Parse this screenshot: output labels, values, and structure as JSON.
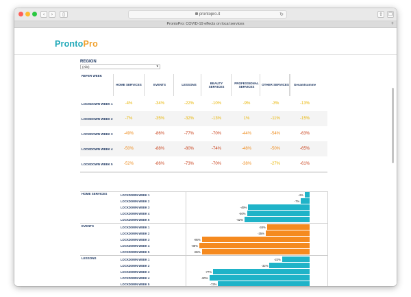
{
  "browser": {
    "url": "prontopro.it",
    "tab_title": "ProntoPro: COVID-19 effects on local services",
    "back_icon": "chevron-left-icon",
    "forward_icon": "chevron-right-icon"
  },
  "header": {
    "logo_part1": "Pronto",
    "logo_part2": "Pro",
    "logo_colors": [
      "#1fa8b8",
      "#f0a12e"
    ]
  },
  "filter": {
    "label": "REGION",
    "value": "(Alle)"
  },
  "table": {
    "corner_label": "REFER WEEK",
    "columns": [
      "HOME SERVICES",
      "EVENTS",
      "LESSONS",
      "BEAUTY SERVICES",
      "PROFESSIONAL SERVICES",
      "OTHER SERVICES",
      "Gesamtsumme"
    ],
    "rows": [
      {
        "label": "LOCKDOWN WEEK 1",
        "values": [
          "-4%",
          "-34%",
          "-22%",
          "-10%",
          "-9%",
          "-3%",
          "-13%"
        ]
      },
      {
        "label": "LOCKDOWN WEEK 2",
        "values": [
          "-7%",
          "-35%",
          "-32%",
          "-13%",
          "1%",
          "-11%",
          "-15%"
        ]
      },
      {
        "label": "LOCKDOWN WEEK 3",
        "values": [
          "-49%",
          "-86%",
          "-77%",
          "-70%",
          "-44%",
          "-54%",
          "-63%"
        ]
      },
      {
        "label": "LOCKDOWN WEEK 4",
        "values": [
          "-50%",
          "-88%",
          "-80%",
          "-74%",
          "-48%",
          "-50%",
          "-65%"
        ]
      },
      {
        "label": "LOCKDOWN WEEK 5",
        "values": [
          "-52%",
          "-86%",
          "-73%",
          "-70%",
          "-38%",
          "-27%",
          "-61%"
        ]
      }
    ],
    "value_colors": {
      "low": "#e8b400",
      "mid": "#ee8a1a",
      "high": "#c8401a"
    }
  },
  "chart_data": {
    "type": "bar",
    "orientation": "horizontal",
    "x_range": [
      -100,
      0
    ],
    "colors": {
      "HOME SERVICES": "#1fb3c8",
      "EVENTS": "#f58a1f",
      "LESSONS": "#1fb3c8"
    },
    "groups": [
      {
        "name": "HOME SERVICES",
        "categories": [
          "LOCKDOWN WEEK 1",
          "LOCKDOWN WEEK 2",
          "LOCKDOWN WEEK 3",
          "LOCKDOWN WEEK 4",
          "LOCKDOWN WEEK 5"
        ],
        "values": [
          -4,
          -7,
          -49,
          -50,
          -52
        ]
      },
      {
        "name": "EVENTS",
        "categories": [
          "LOCKDOWN WEEK 1",
          "LOCKDOWN WEEK 2",
          "LOCKDOWN WEEK 3",
          "LOCKDOWN WEEK 4",
          "LOCKDOWN WEEK 5"
        ],
        "values": [
          -34,
          -35,
          -86,
          -88,
          -86
        ]
      },
      {
        "name": "LESSONS",
        "categories": [
          "LOCKDOWN WEEK 1",
          "LOCKDOWN WEEK 2",
          "LOCKDOWN WEEK 3",
          "LOCKDOWN WEEK 4",
          "LOCKDOWN WEEK 5"
        ],
        "values": [
          -22,
          -32,
          -77,
          -80,
          -73
        ]
      }
    ]
  }
}
